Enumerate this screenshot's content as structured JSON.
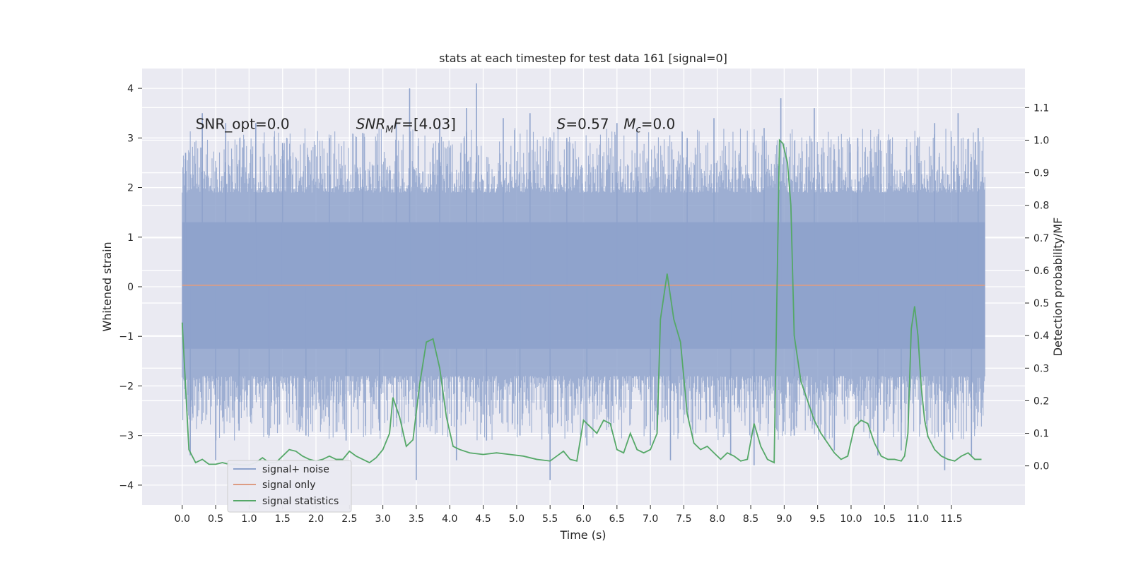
{
  "chart_data": {
    "type": "line",
    "title": "stats at each timestep for test data 161 [signal=0]",
    "xlabel": "Time (s)",
    "ylabel": "Whitened strain",
    "ylabel_right": "Detection probability/MF",
    "xlim": [
      -0.6,
      12.6
    ],
    "ylim": [
      -4.4,
      4.4
    ],
    "ylim_right": [
      -0.12,
      1.22
    ],
    "x_ticks": [
      0.0,
      0.5,
      1.0,
      1.5,
      2.0,
      2.5,
      3.0,
      3.5,
      4.0,
      4.5,
      5.0,
      5.5,
      6.0,
      6.5,
      7.0,
      7.5,
      8.0,
      8.5,
      9.0,
      9.5,
      10.0,
      10.5,
      11.0,
      11.5
    ],
    "x_tick_labels": [
      "0.0",
      "0.5",
      "1.0",
      "1.5",
      "2.0",
      "2.5",
      "3.0",
      "3.5",
      "4.0",
      "4.5",
      "5.0",
      "5.5",
      "6.0",
      "6.5",
      "7.0",
      "7.5",
      "8.0",
      "8.5",
      "9.0",
      "9.5",
      "10.0",
      "10.5",
      "11.0",
      "11.5"
    ],
    "y_ticks": [
      -4,
      -3,
      -2,
      -1,
      0,
      1,
      2,
      3,
      4
    ],
    "y_tick_labels": [
      "−4",
      "−3",
      "−2",
      "−1",
      "0",
      "1",
      "2",
      "3",
      "4"
    ],
    "y_right_ticks": [
      0.0,
      0.1,
      0.2,
      0.3,
      0.4,
      0.5,
      0.6,
      0.7,
      0.8,
      0.9,
      1.0,
      1.1
    ],
    "y_right_tick_labels": [
      "0.0",
      "0.1",
      "0.2",
      "0.3",
      "0.4",
      "0.5",
      "0.6",
      "0.7",
      "0.8",
      "0.9",
      "1.0",
      "1.1"
    ],
    "grid": true,
    "legend_position": "lower-left",
    "annotations": [
      {
        "text": "SNR_opt=0.0",
        "x": 0.2,
        "y": 3.3
      },
      {
        "text": "SNR_MF=[4.03]",
        "x": 2.6,
        "y": 3.3
      },
      {
        "text": "S=0.57",
        "x": 5.6,
        "y": 3.3
      },
      {
        "text": "M_c=0.0",
        "x": 6.6,
        "y": 3.3
      }
    ],
    "series": [
      {
        "name": "signal+ noise",
        "color": "#8fa3cc",
        "axis": "left",
        "kind": "noise",
        "x_range": [
          0.0,
          12.0
        ],
        "core_band": [
          -1.8,
          1.9
        ],
        "peaks": [
          {
            "x": 0.05,
            "y": 2.7
          },
          {
            "x": 0.12,
            "y": -3.4
          },
          {
            "x": 0.3,
            "y": 3.5
          },
          {
            "x": 0.5,
            "y": -3.5
          },
          {
            "x": 0.65,
            "y": 3.3
          },
          {
            "x": 0.85,
            "y": -2.9
          },
          {
            "x": 1.1,
            "y": 3.3
          },
          {
            "x": 1.3,
            "y": -3.0
          },
          {
            "x": 1.5,
            "y": 2.9
          },
          {
            "x": 1.85,
            "y": -3.0
          },
          {
            "x": 2.2,
            "y": 3.0
          },
          {
            "x": 2.45,
            "y": -3.1
          },
          {
            "x": 2.7,
            "y": 3.1
          },
          {
            "x": 2.95,
            "y": -2.9
          },
          {
            "x": 3.2,
            "y": 3.3
          },
          {
            "x": 3.4,
            "y": 4.0
          },
          {
            "x": 3.5,
            "y": -3.9
          },
          {
            "x": 3.85,
            "y": 3.3
          },
          {
            "x": 4.1,
            "y": -3.5
          },
          {
            "x": 4.25,
            "y": 3.6
          },
          {
            "x": 4.4,
            "y": 4.1
          },
          {
            "x": 4.55,
            "y": -3.1
          },
          {
            "x": 4.8,
            "y": 3.4
          },
          {
            "x": 5.05,
            "y": -3.0
          },
          {
            "x": 5.2,
            "y": 3.5
          },
          {
            "x": 5.5,
            "y": -3.9
          },
          {
            "x": 5.75,
            "y": 3.0
          },
          {
            "x": 6.05,
            "y": -3.2
          },
          {
            "x": 6.5,
            "y": 3.3
          },
          {
            "x": 6.8,
            "y": 3.2
          },
          {
            "x": 7.0,
            "y": -3.2
          },
          {
            "x": 7.3,
            "y": -3.5
          },
          {
            "x": 7.55,
            "y": 3.0
          },
          {
            "x": 7.95,
            "y": 3.4
          },
          {
            "x": 8.2,
            "y": -3.4
          },
          {
            "x": 8.55,
            "y": -3.6
          },
          {
            "x": 8.7,
            "y": 3.2
          },
          {
            "x": 8.95,
            "y": 3.8
          },
          {
            "x": 9.15,
            "y": -3.0
          },
          {
            "x": 9.45,
            "y": 3.6
          },
          {
            "x": 9.75,
            "y": -3.3
          },
          {
            "x": 10.1,
            "y": 3.0
          },
          {
            "x": 10.4,
            "y": -3.4
          },
          {
            "x": 10.75,
            "y": -3.3
          },
          {
            "x": 11.0,
            "y": 3.0
          },
          {
            "x": 11.25,
            "y": 3.3
          },
          {
            "x": 11.4,
            "y": -3.7
          },
          {
            "x": 11.6,
            "y": 3.5
          },
          {
            "x": 11.8,
            "y": -3.4
          },
          {
            "x": 11.9,
            "y": 3.2
          }
        ]
      },
      {
        "name": "signal only",
        "color": "#dd9c83",
        "axis": "left",
        "x": [
          0.0,
          12.0
        ],
        "y": [
          0.03,
          0.03
        ]
      },
      {
        "name": "signal statistics",
        "color": "#55a868",
        "axis": "right",
        "x": [
          0.0,
          0.1,
          0.2,
          0.3,
          0.4,
          0.5,
          0.6,
          0.7,
          0.8,
          0.9,
          1.0,
          1.1,
          1.2,
          1.3,
          1.4,
          1.5,
          1.6,
          1.7,
          1.8,
          1.9,
          2.0,
          2.1,
          2.2,
          2.3,
          2.4,
          2.5,
          2.6,
          2.7,
          2.8,
          2.9,
          3.0,
          3.1,
          3.15,
          3.25,
          3.35,
          3.45,
          3.55,
          3.65,
          3.75,
          3.85,
          3.95,
          4.05,
          4.15,
          4.3,
          4.5,
          4.7,
          4.9,
          5.1,
          5.3,
          5.5,
          5.6,
          5.7,
          5.8,
          5.9,
          6.0,
          6.1,
          6.2,
          6.3,
          6.4,
          6.5,
          6.6,
          6.7,
          6.8,
          6.9,
          7.0,
          7.1,
          7.15,
          7.25,
          7.35,
          7.45,
          7.55,
          7.65,
          7.75,
          7.85,
          7.95,
          8.05,
          8.15,
          8.25,
          8.35,
          8.45,
          8.55,
          8.65,
          8.75,
          8.85,
          8.93,
          8.98,
          9.05,
          9.1,
          9.15,
          9.25,
          9.35,
          9.45,
          9.55,
          9.65,
          9.75,
          9.85,
          9.95,
          10.05,
          10.15,
          10.25,
          10.35,
          10.45,
          10.55,
          10.65,
          10.75,
          10.8,
          10.85,
          10.9,
          10.95,
          11.0,
          11.05,
          11.1,
          11.15,
          11.25,
          11.35,
          11.45,
          11.55,
          11.65,
          11.75,
          11.85,
          11.95
        ],
        "y": [
          0.44,
          0.05,
          0.01,
          0.02,
          0.005,
          0.005,
          0.01,
          0.005,
          0.005,
          0.003,
          0.003,
          0.01,
          0.025,
          0.01,
          0.01,
          0.03,
          0.05,
          0.045,
          0.03,
          0.02,
          0.015,
          0.02,
          0.03,
          0.02,
          0.02,
          0.045,
          0.03,
          0.02,
          0.01,
          0.025,
          0.05,
          0.1,
          0.21,
          0.15,
          0.06,
          0.08,
          0.25,
          0.38,
          0.39,
          0.3,
          0.15,
          0.06,
          0.05,
          0.04,
          0.035,
          0.04,
          0.035,
          0.03,
          0.02,
          0.015,
          0.03,
          0.045,
          0.02,
          0.015,
          0.14,
          0.12,
          0.1,
          0.14,
          0.13,
          0.05,
          0.04,
          0.1,
          0.05,
          0.04,
          0.05,
          0.1,
          0.45,
          0.59,
          0.45,
          0.38,
          0.16,
          0.07,
          0.05,
          0.06,
          0.04,
          0.02,
          0.04,
          0.03,
          0.015,
          0.02,
          0.13,
          0.06,
          0.02,
          0.01,
          1.0,
          0.99,
          0.93,
          0.8,
          0.4,
          0.26,
          0.2,
          0.14,
          0.1,
          0.07,
          0.04,
          0.02,
          0.03,
          0.12,
          0.14,
          0.13,
          0.07,
          0.03,
          0.02,
          0.02,
          0.015,
          0.03,
          0.1,
          0.42,
          0.49,
          0.4,
          0.24,
          0.14,
          0.09,
          0.05,
          0.03,
          0.02,
          0.015,
          0.03,
          0.04,
          0.02,
          0.02
        ]
      }
    ]
  }
}
